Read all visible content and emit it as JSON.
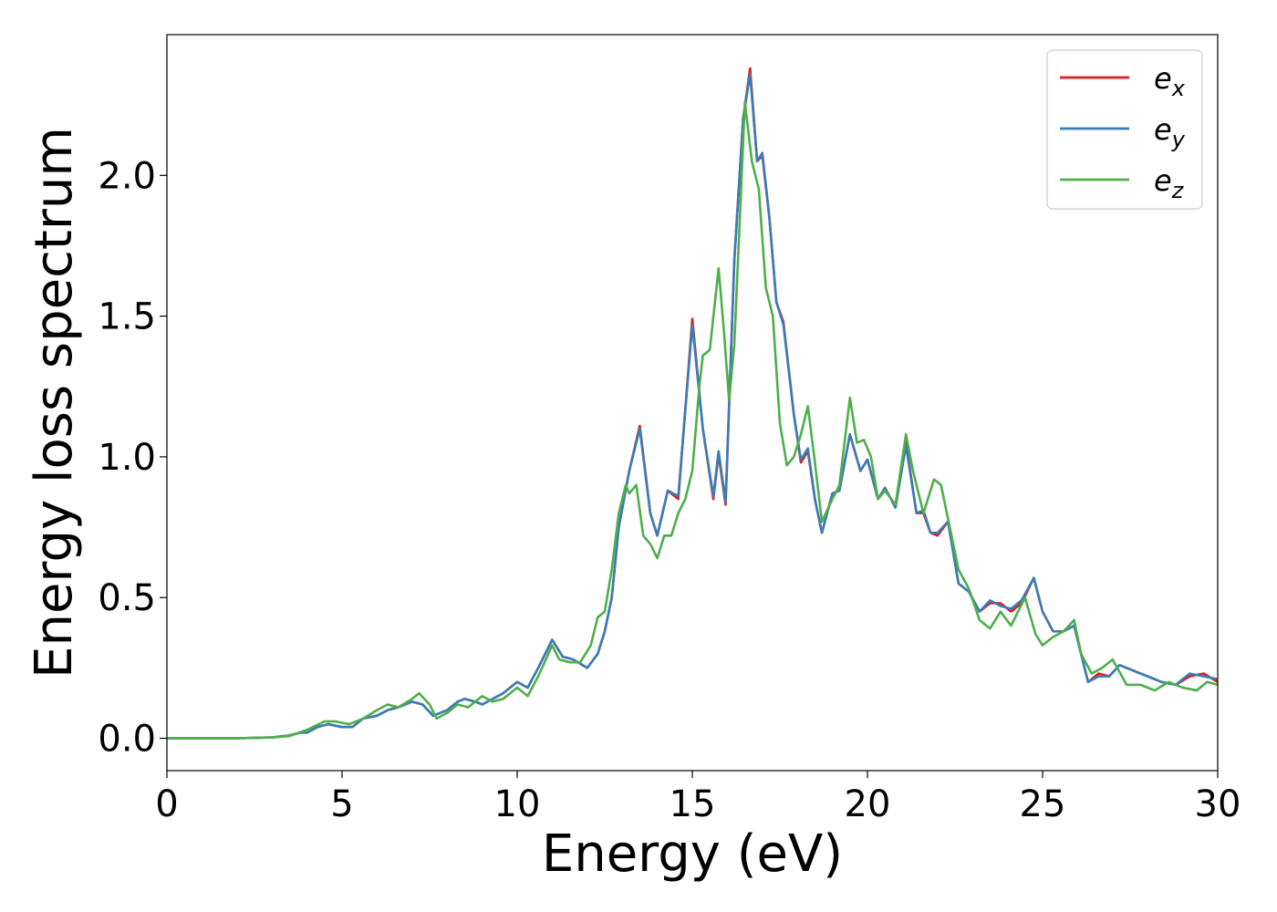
{
  "chart_data": {
    "type": "line",
    "title": "",
    "xlabel": "Energy (eV)",
    "ylabel": "Energy loss spectrum",
    "xlim": [
      0,
      30
    ],
    "ylim": [
      -0.115,
      2.5
    ],
    "xticks": [
      0,
      5,
      10,
      15,
      20,
      25,
      30
    ],
    "xtick_labels": [
      "0",
      "5",
      "10",
      "15",
      "20",
      "25",
      "30"
    ],
    "yticks": [
      0.0,
      0.5,
      1.0,
      1.5,
      2.0
    ],
    "ytick_labels": [
      "0.0",
      "0.5",
      "1.0",
      "1.5",
      "2.0"
    ],
    "grid": false,
    "legend_position": "top-right",
    "series": [
      {
        "name": "e_x",
        "legend_base": "e",
        "legend_sub": "x",
        "color": "#e41a1c",
        "x": [
          0,
          1,
          2,
          3,
          3.5,
          3.8,
          4.0,
          4.3,
          4.6,
          5.0,
          5.3,
          5.6,
          6.0,
          6.3,
          6.6,
          7.0,
          7.3,
          7.6,
          8.0,
          8.3,
          8.5,
          8.8,
          9.0,
          9.3,
          9.6,
          10.0,
          10.3,
          10.6,
          11.0,
          11.3,
          11.6,
          12.0,
          12.3,
          12.5,
          12.7,
          12.9,
          13.2,
          13.5,
          13.8,
          14.0,
          14.3,
          14.6,
          15.0,
          15.3,
          15.6,
          15.75,
          15.95,
          16.2,
          16.45,
          16.65,
          16.85,
          17.0,
          17.2,
          17.4,
          17.6,
          17.9,
          18.1,
          18.3,
          18.5,
          18.7,
          19.0,
          19.2,
          19.5,
          19.8,
          20.0,
          20.3,
          20.5,
          20.8,
          21.1,
          21.4,
          21.6,
          21.8,
          22.0,
          22.3,
          22.6,
          22.9,
          23.2,
          23.5,
          23.8,
          24.1,
          24.4,
          24.75,
          25.0,
          25.3,
          25.6,
          25.9,
          26.1,
          26.3,
          26.6,
          26.9,
          27.2,
          27.6,
          28.0,
          28.4,
          28.8,
          29.2,
          29.6,
          30
        ],
        "y": [
          0.0,
          0.0,
          0.0,
          0.003,
          0.01,
          0.02,
          0.02,
          0.04,
          0.05,
          0.04,
          0.04,
          0.07,
          0.08,
          0.1,
          0.11,
          0.13,
          0.12,
          0.08,
          0.1,
          0.13,
          0.14,
          0.13,
          0.12,
          0.14,
          0.16,
          0.2,
          0.18,
          0.25,
          0.35,
          0.29,
          0.28,
          0.25,
          0.3,
          0.38,
          0.5,
          0.75,
          0.95,
          1.11,
          0.8,
          0.72,
          0.88,
          0.85,
          1.49,
          1.1,
          0.85,
          1.01,
          0.83,
          1.7,
          2.2,
          2.38,
          2.05,
          2.07,
          1.85,
          1.55,
          1.48,
          1.15,
          0.98,
          1.02,
          0.85,
          0.73,
          0.87,
          0.88,
          1.08,
          0.95,
          0.99,
          0.85,
          0.89,
          0.82,
          1.05,
          0.8,
          0.8,
          0.73,
          0.72,
          0.77,
          0.55,
          0.52,
          0.45,
          0.48,
          0.48,
          0.45,
          0.48,
          0.57,
          0.45,
          0.38,
          0.38,
          0.4,
          0.3,
          0.2,
          0.23,
          0.22,
          0.26,
          0.24,
          0.22,
          0.2,
          0.19,
          0.22,
          0.23,
          0.2
        ],
        "y_note": ""
      },
      {
        "name": "e_y",
        "legend_base": "e",
        "legend_sub": "y",
        "color": "#377eb8",
        "x": [
          0,
          1,
          2,
          3,
          3.5,
          3.8,
          4.0,
          4.3,
          4.6,
          5.0,
          5.3,
          5.6,
          6.0,
          6.3,
          6.6,
          7.0,
          7.3,
          7.6,
          8.0,
          8.3,
          8.5,
          8.8,
          9.0,
          9.3,
          9.6,
          10.0,
          10.3,
          10.6,
          11.0,
          11.3,
          11.6,
          12.0,
          12.3,
          12.5,
          12.7,
          12.9,
          13.2,
          13.5,
          13.8,
          14.0,
          14.3,
          14.6,
          15.0,
          15.3,
          15.6,
          15.75,
          15.95,
          16.2,
          16.45,
          16.65,
          16.85,
          17.0,
          17.2,
          17.4,
          17.6,
          17.9,
          18.1,
          18.3,
          18.5,
          18.7,
          19.0,
          19.2,
          19.5,
          19.8,
          20.0,
          20.3,
          20.5,
          20.8,
          21.1,
          21.4,
          21.6,
          21.8,
          22.0,
          22.3,
          22.6,
          22.9,
          23.2,
          23.5,
          23.8,
          24.1,
          24.4,
          24.75,
          25.0,
          25.3,
          25.6,
          25.9,
          26.1,
          26.3,
          26.6,
          26.9,
          27.2,
          27.6,
          28.0,
          28.4,
          28.8,
          29.2,
          29.6,
          30
        ],
        "y": [
          0.0,
          0.0,
          0.0,
          0.003,
          0.01,
          0.02,
          0.02,
          0.04,
          0.05,
          0.04,
          0.04,
          0.07,
          0.08,
          0.1,
          0.11,
          0.13,
          0.12,
          0.08,
          0.1,
          0.13,
          0.14,
          0.13,
          0.12,
          0.14,
          0.16,
          0.2,
          0.18,
          0.25,
          0.35,
          0.29,
          0.28,
          0.25,
          0.3,
          0.38,
          0.5,
          0.75,
          0.95,
          1.1,
          0.8,
          0.72,
          0.88,
          0.86,
          1.47,
          1.1,
          0.86,
          1.02,
          0.84,
          1.7,
          2.2,
          2.36,
          2.05,
          2.08,
          1.85,
          1.55,
          1.47,
          1.15,
          0.99,
          1.03,
          0.85,
          0.73,
          0.87,
          0.88,
          1.08,
          0.95,
          0.99,
          0.85,
          0.89,
          0.82,
          1.04,
          0.8,
          0.81,
          0.73,
          0.73,
          0.77,
          0.55,
          0.52,
          0.45,
          0.49,
          0.47,
          0.46,
          0.49,
          0.57,
          0.45,
          0.38,
          0.38,
          0.4,
          0.3,
          0.2,
          0.22,
          0.22,
          0.26,
          0.24,
          0.22,
          0.2,
          0.19,
          0.23,
          0.22,
          0.21
        ]
      },
      {
        "name": "e_z",
        "legend_base": "e",
        "legend_sub": "z",
        "color": "#4daf4a",
        "x": [
          0,
          1,
          2,
          3,
          3.5,
          4.0,
          4.5,
          4.8,
          5.2,
          5.6,
          6.0,
          6.3,
          6.6,
          7.0,
          7.2,
          7.5,
          7.7,
          8.0,
          8.3,
          8.6,
          9.0,
          9.3,
          9.6,
          10.0,
          10.3,
          10.6,
          11.0,
          11.2,
          11.5,
          11.8,
          12.1,
          12.3,
          12.5,
          12.7,
          12.9,
          13.1,
          13.2,
          13.4,
          13.6,
          13.8,
          14.0,
          14.2,
          14.4,
          14.6,
          14.8,
          15.0,
          15.2,
          15.3,
          15.5,
          15.75,
          15.9,
          16.05,
          16.2,
          16.5,
          16.7,
          16.9,
          17.1,
          17.3,
          17.5,
          17.7,
          17.9,
          18.1,
          18.3,
          18.5,
          18.7,
          19.0,
          19.2,
          19.5,
          19.7,
          19.9,
          20.1,
          20.3,
          20.5,
          20.8,
          21.1,
          21.3,
          21.6,
          21.9,
          22.1,
          22.3,
          22.6,
          22.9,
          23.2,
          23.5,
          23.8,
          24.1,
          24.5,
          24.8,
          25.0,
          25.3,
          25.6,
          25.9,
          26.1,
          26.4,
          26.7,
          27.0,
          27.4,
          27.8,
          28.2,
          28.6,
          29.0,
          29.4,
          29.7,
          30
        ],
        "y": [
          0.0,
          0.0,
          0.0,
          0.003,
          0.008,
          0.03,
          0.06,
          0.06,
          0.05,
          0.07,
          0.1,
          0.12,
          0.11,
          0.14,
          0.16,
          0.12,
          0.07,
          0.09,
          0.12,
          0.11,
          0.15,
          0.13,
          0.14,
          0.18,
          0.15,
          0.22,
          0.33,
          0.28,
          0.27,
          0.27,
          0.33,
          0.43,
          0.45,
          0.6,
          0.8,
          0.9,
          0.87,
          0.9,
          0.72,
          0.69,
          0.64,
          0.72,
          0.72,
          0.8,
          0.85,
          0.95,
          1.25,
          1.36,
          1.38,
          1.67,
          1.45,
          1.2,
          1.4,
          2.26,
          2.05,
          1.95,
          1.6,
          1.5,
          1.12,
          0.97,
          1.0,
          1.08,
          1.18,
          0.98,
          0.77,
          0.85,
          0.9,
          1.21,
          1.05,
          1.06,
          1.0,
          0.85,
          0.88,
          0.83,
          1.08,
          0.95,
          0.8,
          0.92,
          0.9,
          0.78,
          0.6,
          0.53,
          0.42,
          0.39,
          0.45,
          0.4,
          0.5,
          0.37,
          0.33,
          0.36,
          0.38,
          0.42,
          0.3,
          0.23,
          0.25,
          0.28,
          0.19,
          0.19,
          0.17,
          0.2,
          0.18,
          0.17,
          0.2,
          0.19
        ]
      }
    ]
  }
}
